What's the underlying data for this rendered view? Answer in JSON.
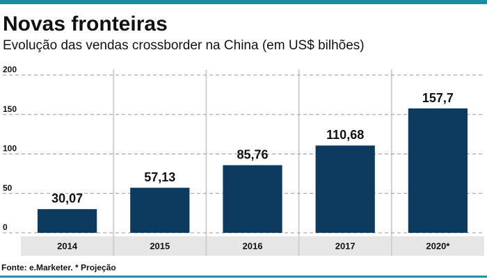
{
  "chart_data": {
    "type": "bar",
    "title": "Novas fronteiras",
    "subtitle": "Evolução das vendas crossborder na China (em US$ bilhões)",
    "categories": [
      "2014",
      "2015",
      "2016",
      "2017",
      "2020*"
    ],
    "values": [
      30.07,
      57.13,
      85.76,
      110.68,
      157.7
    ],
    "value_labels": [
      "30,07",
      "57,13",
      "85,76",
      "110,68",
      "157,7"
    ],
    "color": "#0d3b5f",
    "ylim": [
      0,
      200
    ],
    "yticks": [
      0,
      50,
      100,
      150,
      200
    ],
    "grid": true,
    "source": "Fonte: e.Marketer. * Projeção"
  }
}
